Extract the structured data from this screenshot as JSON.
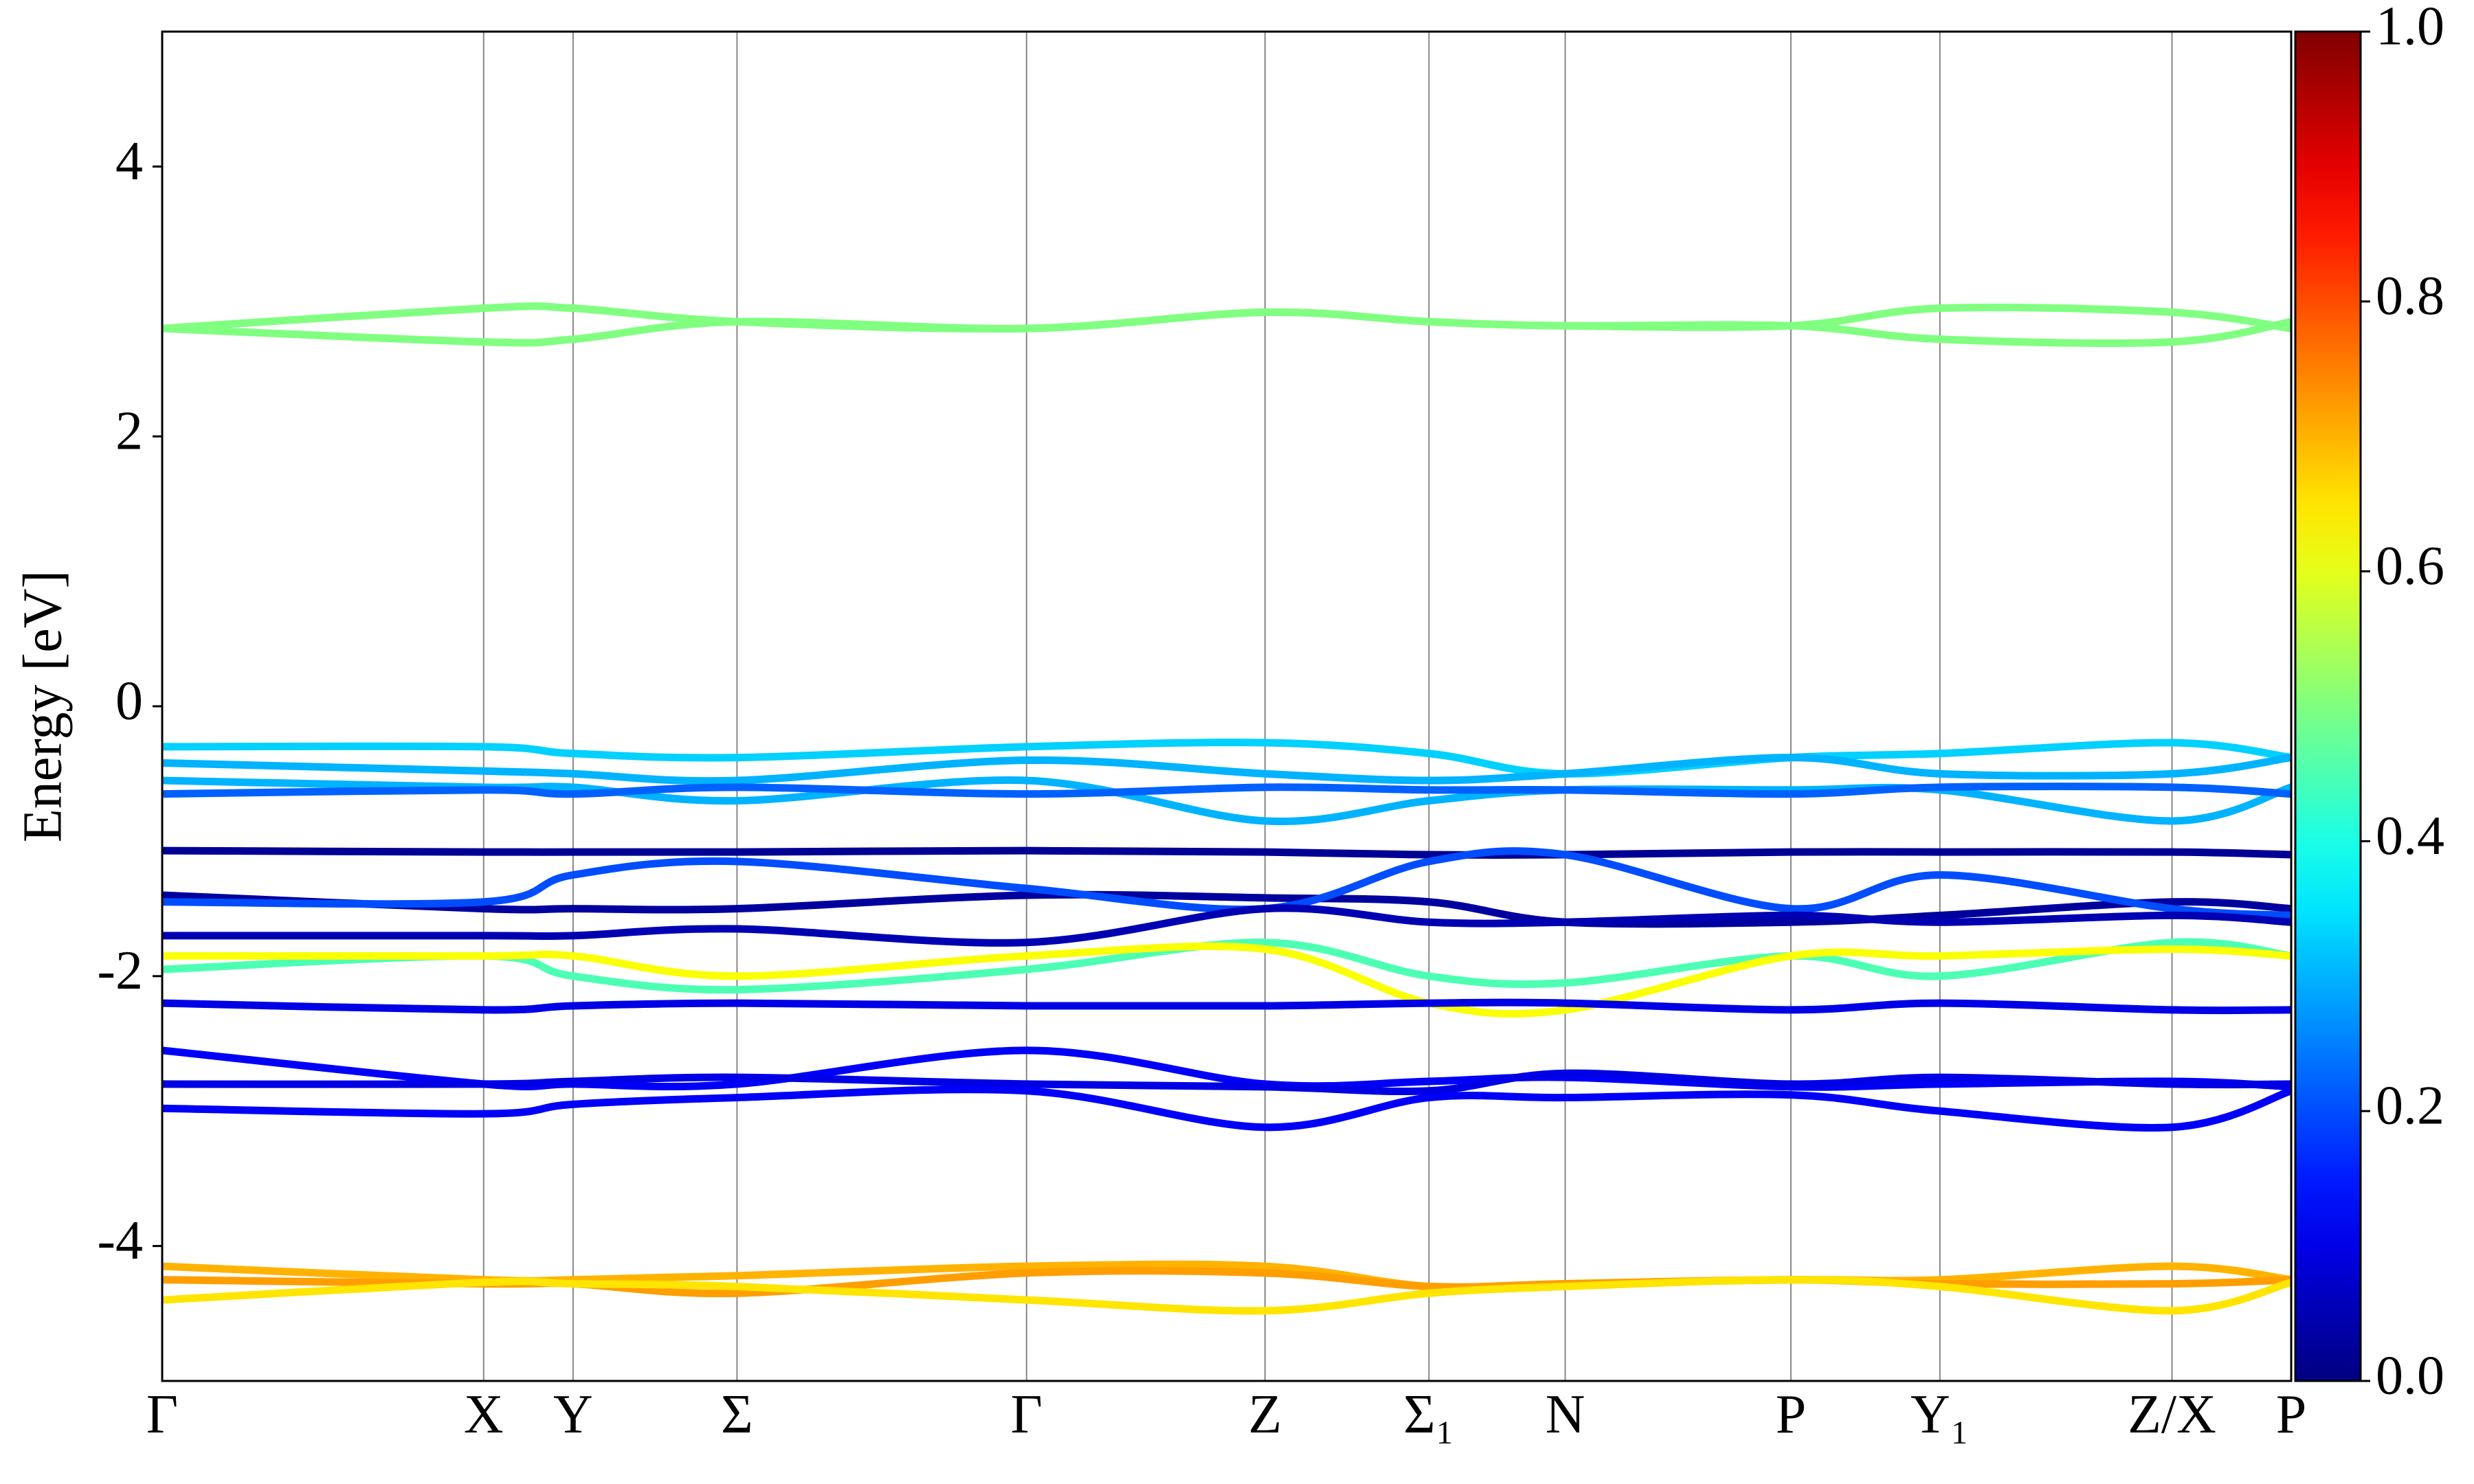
{
  "chart_data": {
    "type": "band-structure",
    "ylabel": "Energy [eV]",
    "x": [
      0,
      0.151,
      0.193,
      0.27,
      0.406,
      0.518,
      0.595,
      0.659,
      0.765,
      0.835,
      0.944,
      1.0
    ],
    "xlim": [
      0,
      1.0
    ],
    "xticks": [
      {
        "value": 0,
        "label": "Γ"
      },
      {
        "value": 0.151,
        "label": "X"
      },
      {
        "value": 0.193,
        "label": "Y"
      },
      {
        "value": 0.27,
        "label": "Σ"
      },
      {
        "value": 0.406,
        "label": "Γ"
      },
      {
        "value": 0.518,
        "label": "Z"
      },
      {
        "value": 0.595,
        "label": "Σ₁"
      },
      {
        "value": 0.659,
        "label": "N"
      },
      {
        "value": 0.765,
        "label": "P"
      },
      {
        "value": 0.835,
        "label": "Y₁"
      },
      {
        "value": 0.944,
        "label": "Z/X"
      },
      {
        "value": 1.0,
        "label": "P"
      }
    ],
    "ylim": [
      -5,
      5
    ],
    "yticks": [
      -4,
      -2,
      0,
      2,
      4
    ],
    "colormap": "jet",
    "clim": [
      0,
      1
    ],
    "cticks": [
      {
        "value": 0,
        "label": "0.0"
      },
      0.2,
      0.4,
      0.6,
      0.8,
      {
        "value": 1,
        "label": "1.0"
      }
    ],
    "series": [
      {
        "weight": 0.5,
        "values": [
          2.8,
          2.95,
          2.95,
          2.85,
          2.8,
          2.92,
          2.85,
          2.82,
          2.82,
          2.95,
          2.92,
          2.8
        ]
      },
      {
        "weight": 0.5,
        "values": [
          2.8,
          2.7,
          2.72,
          2.85,
          2.8,
          2.92,
          2.85,
          2.82,
          2.82,
          2.72,
          2.7,
          2.85
        ]
      },
      {
        "weight": 0.33,
        "values": [
          -0.3,
          -0.3,
          -0.35,
          -0.38,
          -0.3,
          -0.27,
          -0.35,
          -0.5,
          -0.38,
          -0.35,
          -0.27,
          -0.38
        ]
      },
      {
        "weight": 0.3,
        "values": [
          -0.42,
          -0.48,
          -0.5,
          -0.55,
          -0.4,
          -0.5,
          -0.55,
          -0.5,
          -0.38,
          -0.5,
          -0.5,
          -0.38
        ]
      },
      {
        "weight": 0.3,
        "values": [
          -0.55,
          -0.6,
          -0.6,
          -0.7,
          -0.55,
          -0.85,
          -0.7,
          -0.62,
          -0.62,
          -0.62,
          -0.85,
          -0.6
        ]
      },
      {
        "weight": 0.22,
        "values": [
          -0.65,
          -0.62,
          -0.65,
          -0.6,
          -0.65,
          -0.6,
          -0.62,
          -0.62,
          -0.65,
          -0.6,
          -0.6,
          -0.65
        ]
      },
      {
        "weight": 0.02,
        "values": [
          -1.07,
          -1.08,
          -1.08,
          -1.08,
          -1.07,
          -1.08,
          -1.1,
          -1.1,
          -1.08,
          -1.08,
          -1.08,
          -1.1
        ]
      },
      {
        "weight": 0.03,
        "values": [
          -1.4,
          -1.5,
          -1.5,
          -1.5,
          -1.4,
          -1.42,
          -1.45,
          -1.6,
          -1.6,
          -1.55,
          -1.45,
          -1.5
        ]
      },
      {
        "weight": 0.2,
        "values": [
          -1.45,
          -1.45,
          -1.25,
          -1.15,
          -1.35,
          -1.5,
          -1.15,
          -1.1,
          -1.5,
          -1.25,
          -1.5,
          -1.55
        ]
      },
      {
        "weight": 0.05,
        "values": [
          -1.7,
          -1.7,
          -1.7,
          -1.65,
          -1.75,
          -1.5,
          -1.6,
          -1.6,
          -1.55,
          -1.6,
          -1.55,
          -1.6
        ]
      },
      {
        "weight": 0.45,
        "values": [
          -1.95,
          -1.85,
          -2.0,
          -2.1,
          -1.95,
          -1.75,
          -2.0,
          -2.05,
          -1.85,
          -2.0,
          -1.75,
          -1.85
        ]
      },
      {
        "weight": 0.62,
        "values": [
          -1.85,
          -1.85,
          -1.85,
          -2.0,
          -1.85,
          -1.8,
          -2.2,
          -2.25,
          -1.85,
          -1.85,
          -1.8,
          -1.85
        ]
      },
      {
        "weight": 0.1,
        "values": [
          -2.2,
          -2.25,
          -2.22,
          -2.2,
          -2.22,
          -2.22,
          -2.2,
          -2.2,
          -2.25,
          -2.2,
          -2.25,
          -2.25
        ]
      },
      {
        "weight": 0.12,
        "values": [
          -2.55,
          -2.8,
          -2.8,
          -2.8,
          -2.55,
          -2.8,
          -2.78,
          -2.75,
          -2.82,
          -2.8,
          -2.78,
          -2.82
        ]
      },
      {
        "weight": 0.1,
        "values": [
          -2.8,
          -2.8,
          -2.78,
          -2.75,
          -2.8,
          -2.82,
          -2.85,
          -2.72,
          -2.8,
          -2.75,
          -2.8,
          -2.8
        ]
      },
      {
        "weight": 0.12,
        "values": [
          -2.98,
          -3.02,
          -2.95,
          -2.9,
          -2.85,
          -3.12,
          -2.9,
          -2.9,
          -2.88,
          -3.0,
          -3.12,
          -2.85
        ]
      },
      {
        "weight": 0.7,
        "values": [
          -4.15,
          -4.25,
          -4.25,
          -4.22,
          -4.15,
          -4.15,
          -4.3,
          -4.28,
          -4.25,
          -4.25,
          -4.15,
          -4.25
        ]
      },
      {
        "weight": 0.72,
        "values": [
          -4.25,
          -4.28,
          -4.28,
          -4.35,
          -4.2,
          -4.2,
          -4.3,
          -4.28,
          -4.25,
          -4.28,
          -4.28,
          -4.25
        ]
      },
      {
        "weight": 0.65,
        "values": [
          -4.4,
          -4.27,
          -4.28,
          -4.3,
          -4.4,
          -4.48,
          -4.35,
          -4.3,
          -4.25,
          -4.3,
          -4.48,
          -4.27
        ]
      }
    ]
  }
}
